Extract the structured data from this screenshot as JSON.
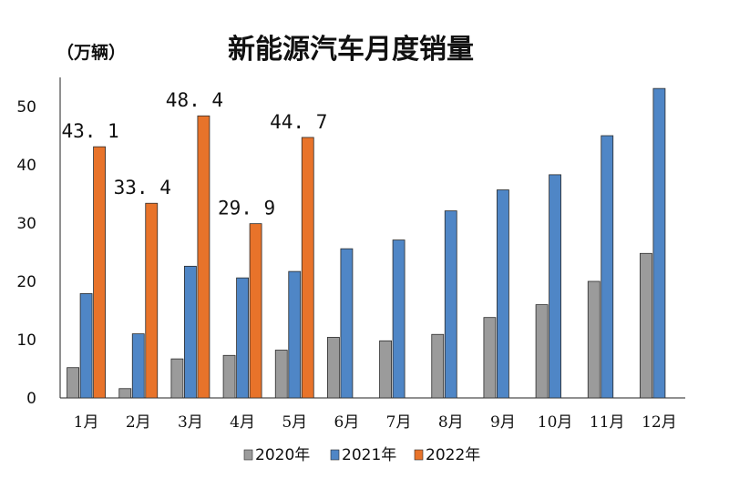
{
  "chart_data": {
    "type": "bar",
    "title": "新能源汽车月度销量",
    "unit_label": "（万辆）",
    "categories": [
      "1月",
      "2月",
      "3月",
      "4月",
      "5月",
      "6月",
      "7月",
      "8月",
      "9月",
      "10月",
      "11月",
      "12月"
    ],
    "ylim": [
      0,
      55
    ],
    "yticks": [
      0,
      10,
      20,
      30,
      40,
      50
    ],
    "grid": false,
    "legend_position": "bottom",
    "series": [
      {
        "name": "2020年",
        "color": "#9b9b9b",
        "values": [
          5.2,
          1.6,
          6.7,
          7.3,
          8.2,
          10.4,
          9.8,
          10.9,
          13.8,
          16.0,
          20.0,
          24.8
        ]
      },
      {
        "name": "2021年",
        "color": "#4f86c6",
        "values": [
          17.9,
          11.0,
          22.6,
          20.6,
          21.7,
          25.6,
          27.1,
          32.1,
          35.7,
          38.3,
          45.0,
          53.1
        ]
      },
      {
        "name": "2022年",
        "color": "#e8732a",
        "values": [
          43.1,
          33.4,
          48.4,
          29.9,
          44.7,
          null,
          null,
          null,
          null,
          null,
          null,
          null
        ]
      }
    ],
    "data_labels": [
      {
        "series": "2022年",
        "category": "1月",
        "text": "43. 1"
      },
      {
        "series": "2022年",
        "category": "2月",
        "text": "33. 4"
      },
      {
        "series": "2022年",
        "category": "3月",
        "text": "48. 4"
      },
      {
        "series": "2022年",
        "category": "4月",
        "text": "29. 9"
      },
      {
        "series": "2022年",
        "category": "5月",
        "text": "44. 7"
      }
    ]
  }
}
